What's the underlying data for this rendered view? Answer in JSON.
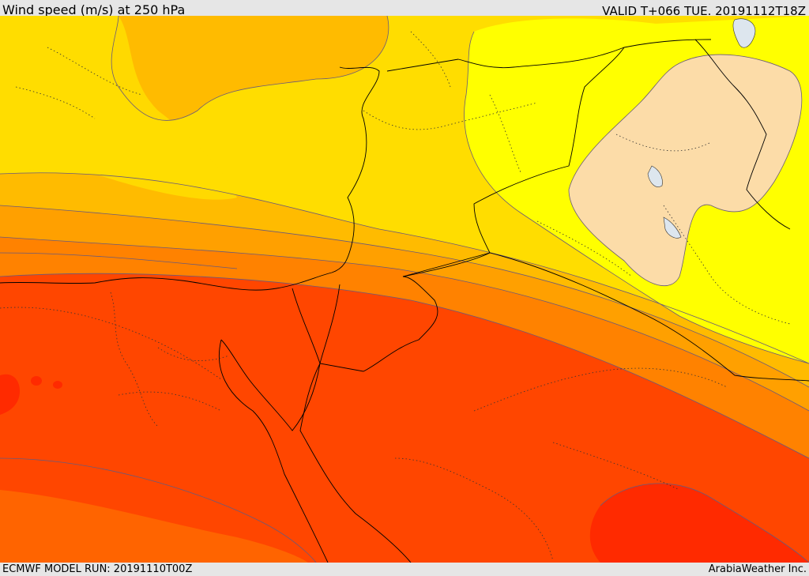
{
  "header": {
    "title": "Wind speed (m/s) at 250 hPa",
    "valid": "VALID T+066 TUE. 20191112T18Z"
  },
  "footer": {
    "model_run": "ECMWF MODEL RUN: 20191110T00Z",
    "credit": "ArabiaWeather Inc."
  },
  "colors": {
    "band_lightest": "#fcdca8",
    "band_yellow": "#ffff00",
    "band_gold": "#ffdd00",
    "band_amber": "#ffbb00",
    "band_orange_light": "#ffa000",
    "band_orange": "#ff8200",
    "band_orange_dark": "#ff6400",
    "band_red_orange": "#ff4600",
    "band_red": "#ff2a00",
    "contour": "#6a5a7a",
    "border": "#000000",
    "water": "#dde6ee"
  }
}
